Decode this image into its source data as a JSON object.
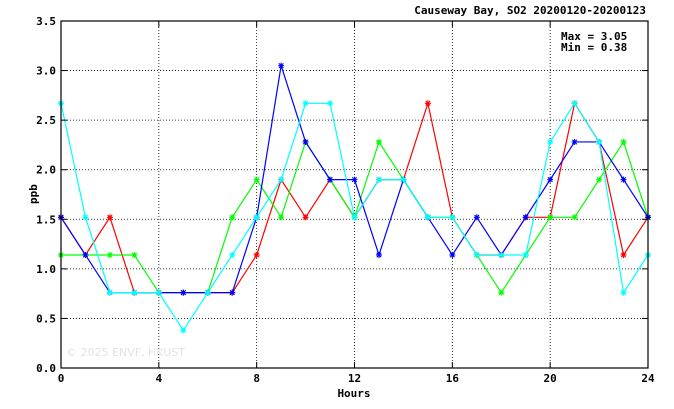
{
  "chart_data": {
    "type": "line",
    "title": "Causeway Bay, SO2 20200120-20200123",
    "xlabel": "Hours",
    "ylabel": "ppb",
    "xlim": [
      0,
      24
    ],
    "ylim": [
      0.0,
      3.5
    ],
    "x_ticks": [
      "0",
      "4",
      "8",
      "12",
      "16",
      "20",
      "24"
    ],
    "y_ticks": [
      "0.0",
      "0.5",
      "1.0",
      "1.5",
      "2.0",
      "2.5",
      "3.0",
      "3.5"
    ],
    "grid": true,
    "annotations": {
      "max_text": "Max = 3.05",
      "min_text": "Min = 0.38"
    },
    "watermark": "© 2025  ENVF, HKUST",
    "x": [
      0,
      1,
      2,
      3,
      4,
      5,
      6,
      7,
      8,
      9,
      10,
      11,
      12,
      13,
      14,
      15,
      16,
      17,
      18,
      19,
      20,
      21,
      22,
      23,
      24
    ],
    "series": [
      {
        "color": "#ff0000",
        "values": [
          1.52,
          1.14,
          1.52,
          0.76,
          0.76,
          0.76,
          0.76,
          0.76,
          1.14,
          1.9,
          1.52,
          1.9,
          1.52,
          1.9,
          1.9,
          2.67,
          1.52,
          1.14,
          1.14,
          1.52,
          1.52,
          2.67,
          2.28,
          1.14,
          1.52
        ]
      },
      {
        "color": "#00ff00",
        "values": [
          1.14,
          1.14,
          1.14,
          1.14,
          0.76,
          0.76,
          0.76,
          1.52,
          1.9,
          1.52,
          2.28,
          1.9,
          1.52,
          2.28,
          1.9,
          1.52,
          1.52,
          1.14,
          0.76,
          1.14,
          1.52,
          1.52,
          1.9,
          2.28,
          1.52
        ]
      },
      {
        "color": "#0000ff",
        "values": [
          1.52,
          1.14,
          0.76,
          0.76,
          0.76,
          0.76,
          0.76,
          0.76,
          1.52,
          3.05,
          2.28,
          1.9,
          1.9,
          1.14,
          1.9,
          1.52,
          1.14,
          1.52,
          1.14,
          1.52,
          1.9,
          2.28,
          2.28,
          1.9,
          1.52
        ]
      },
      {
        "color": "#00ffff",
        "values": [
          2.67,
          1.52,
          0.76,
          0.76,
          0.76,
          0.38,
          0.76,
          1.14,
          1.52,
          1.9,
          2.67,
          2.67,
          1.52,
          1.9,
          1.9,
          1.52,
          1.52,
          1.14,
          1.14,
          1.14,
          2.28,
          2.67,
          2.28,
          0.76,
          1.14
        ]
      }
    ]
  }
}
